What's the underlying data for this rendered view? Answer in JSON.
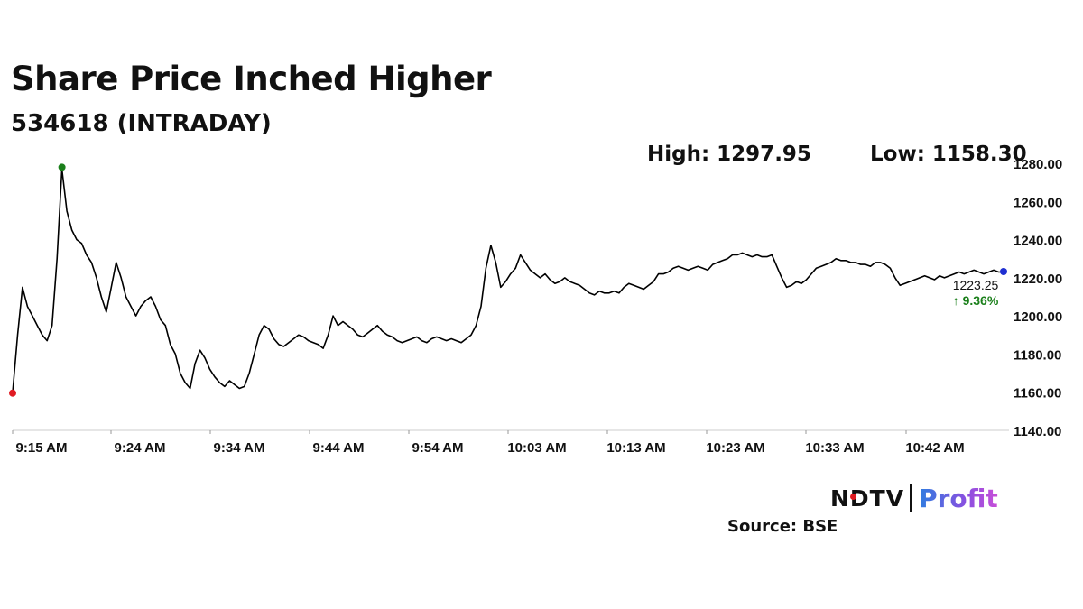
{
  "title": "Share Price Inched Higher",
  "subtitle": "534618 (INTRADAY)",
  "high_label": "High: 1297.95",
  "low_label": "Low: 1158.30",
  "source": "Source: BSE",
  "logo": {
    "ndtv": "NDTV",
    "profit": "Profit"
  },
  "colors": {
    "line": "#000000",
    "high_marker": "#1a7f1a",
    "low_marker": "#e01b22",
    "last_marker": "#1f2fd1",
    "change_up": "#1a7f1a",
    "gridline": "#cccccc"
  },
  "chart_data": {
    "type": "line",
    "x_ticks": [
      "9:15 AM",
      "9:24 AM",
      "9:34 AM",
      "9:44 AM",
      "9:54 AM",
      "10:03 AM",
      "10:13 AM",
      "10:23 AM",
      "10:33 AM",
      "10:42 AM"
    ],
    "y_ticks": [
      "1280.00",
      "1260.00",
      "1240.00",
      "1220.00",
      "1200.00",
      "1180.00",
      "1160.00",
      "1140.00"
    ],
    "ylim": [
      1140,
      1282
    ],
    "last_value_label": "1223.25",
    "change_label": "↑ 9.36%",
    "y_axis_side": "right",
    "grid": false,
    "series": [
      {
        "values": [
          1160,
          1190,
          1215,
          1205,
          1200,
          1195,
          1190,
          1187,
          1195,
          1230,
          1277,
          1255,
          1245,
          1240,
          1238,
          1232,
          1228,
          1220,
          1210,
          1202,
          1215,
          1228,
          1220,
          1210,
          1205,
          1200,
          1205,
          1208,
          1210,
          1205,
          1198,
          1195,
          1185,
          1180,
          1170,
          1165,
          1162,
          1175,
          1182,
          1178,
          1172,
          1168,
          1165,
          1163,
          1166,
          1164,
          1162,
          1163,
          1170,
          1180,
          1190,
          1195,
          1193,
          1188,
          1185,
          1184,
          1186,
          1188,
          1190,
          1189,
          1187,
          1186,
          1185,
          1183,
          1190,
          1200,
          1195,
          1197,
          1195,
          1193,
          1190,
          1189,
          1191,
          1193,
          1195,
          1192,
          1190,
          1189,
          1187,
          1186,
          1187,
          1188,
          1189,
          1187,
          1186,
          1188,
          1189,
          1188,
          1187,
          1188,
          1187,
          1186,
          1188,
          1190,
          1195,
          1205,
          1225,
          1237,
          1228,
          1215,
          1218,
          1222,
          1225,
          1232,
          1228,
          1224,
          1222,
          1220,
          1222,
          1219,
          1217,
          1218,
          1220,
          1218,
          1217,
          1216,
          1214,
          1212,
          1211,
          1213,
          1212,
          1212,
          1213,
          1212,
          1215,
          1217,
          1216,
          1215,
          1214,
          1216,
          1218,
          1222,
          1222,
          1223,
          1225,
          1226,
          1225,
          1224,
          1225,
          1226,
          1225,
          1224,
          1227,
          1228,
          1229,
          1230,
          1232,
          1232,
          1233,
          1232,
          1231,
          1232,
          1231,
          1231,
          1232,
          1226,
          1220,
          1215,
          1216,
          1218,
          1217,
          1219,
          1222,
          1225,
          1226,
          1227,
          1228,
          1230,
          1229,
          1229,
          1228,
          1228,
          1227,
          1227,
          1226,
          1228,
          1228,
          1227,
          1225,
          1220,
          1216,
          1217,
          1218,
          1219,
          1220,
          1221,
          1220,
          1219,
          1221,
          1220,
          1221,
          1222,
          1223,
          1222,
          1223,
          1224,
          1223,
          1222,
          1223,
          1224,
          1223,
          1223
        ]
      }
    ],
    "markers": {
      "low_value": 1160,
      "high_value": 1277,
      "last_value": 1223.25
    }
  }
}
